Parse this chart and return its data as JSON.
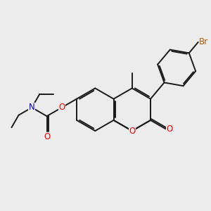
{
  "bg_color": "#ececec",
  "bond_color": "#1a1a1a",
  "bond_width": 1.4,
  "atom_colors": {
    "O": "#ff0000",
    "N": "#0000cc",
    "Br": "#b35900",
    "C": "#1a1a1a"
  },
  "font_size": 8.5
}
